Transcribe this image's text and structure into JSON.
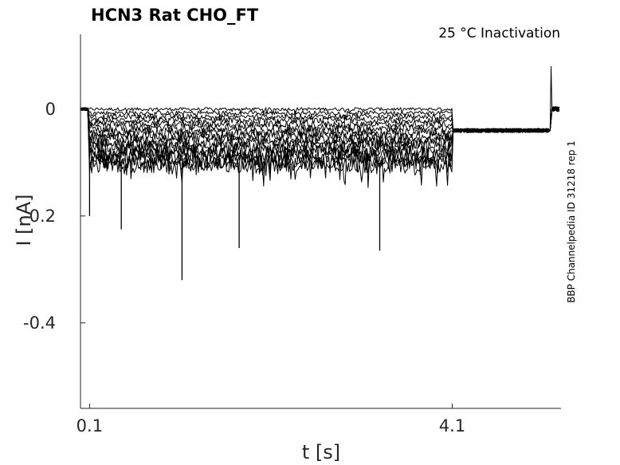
{
  "chart_data": {
    "type": "line",
    "title": "HCN3  Rat  CHO_FT",
    "subtitle": "25 °C  Inactivation",
    "xlabel": "t [s]",
    "ylabel": "I [nA]",
    "side_note": "BBP Channelpedia ID 31218 rep 1",
    "xlim": [
      0.0,
      5.3
    ],
    "ylim": [
      -0.56,
      0.14
    ],
    "x_ticks": [
      {
        "value": 0.1,
        "label": "0.1"
      },
      {
        "value": 4.1,
        "label": "4.1"
      }
    ],
    "y_ticks": [
      {
        "value": 0,
        "label": "0"
      },
      {
        "value": -0.2,
        "label": "-0.2"
      },
      {
        "value": -0.4,
        "label": "-0.4"
      }
    ],
    "grid": false,
    "series_count": 16,
    "protocol": {
      "holding_start": 0.0,
      "pre_pulse_start": 0.1,
      "pre_pulse_end": 4.1,
      "test_pulse_end": 5.2,
      "pre_pulse_level_range": [
        0.0,
        -0.105
      ],
      "test_pulse_level": -0.04,
      "test_pulse_tail_peak": 0.08
    },
    "spikes": [
      {
        "t": 0.1,
        "i": -0.2
      },
      {
        "t": 0.45,
        "i": -0.225
      },
      {
        "t": 1.12,
        "i": -0.32
      },
      {
        "t": 1.75,
        "i": -0.26
      },
      {
        "t": 3.3,
        "i": -0.265
      }
    ]
  }
}
